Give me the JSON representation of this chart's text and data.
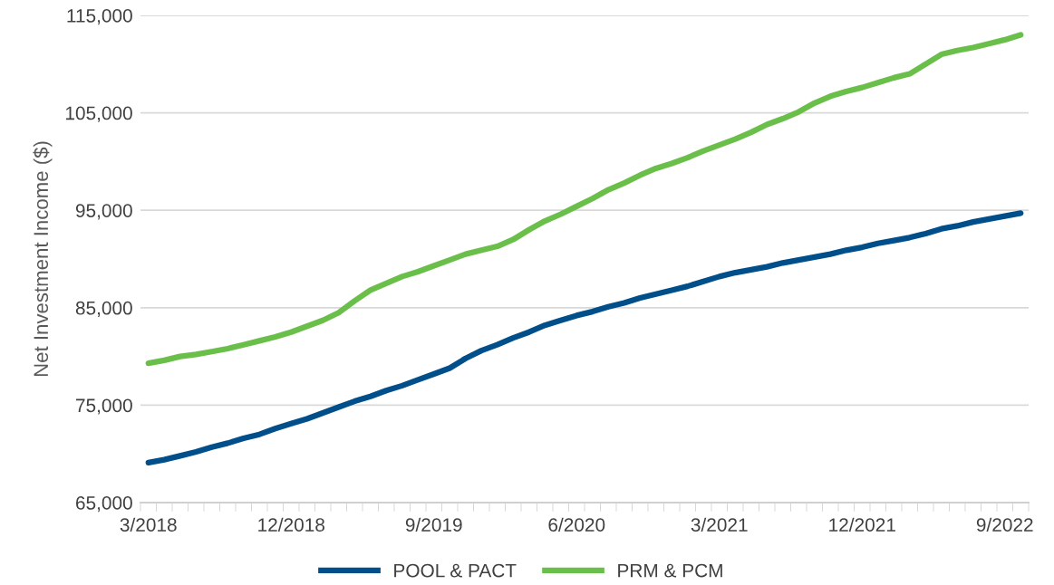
{
  "chart_data": {
    "type": "line",
    "ylabel": "Net Investment Income ($)",
    "categories": [
      "3/2018",
      null,
      null,
      null,
      null,
      null,
      null,
      null,
      null,
      "12/2018",
      null,
      null,
      null,
      null,
      null,
      null,
      null,
      null,
      "9/2019",
      null,
      null,
      null,
      null,
      null,
      null,
      null,
      null,
      "6/2020",
      null,
      null,
      null,
      null,
      null,
      null,
      null,
      null,
      "3/2021",
      null,
      null,
      null,
      null,
      null,
      null,
      null,
      null,
      "12/2021",
      null,
      null,
      null,
      null,
      null,
      null,
      null,
      null,
      "9/2022",
      null
    ],
    "series": [
      {
        "name": "POOL & PACT",
        "color": "#004f8a",
        "values": [
          69100,
          69400,
          69800,
          70200,
          70700,
          71100,
          71600,
          72000,
          72600,
          73100,
          73600,
          74200,
          74800,
          75400,
          75900,
          76500,
          77000,
          77600,
          78200,
          78800,
          79800,
          80600,
          81200,
          81900,
          82500,
          83200,
          83700,
          84200,
          84600,
          85100,
          85500,
          86000,
          86400,
          86800,
          87200,
          87700,
          88200,
          88600,
          88900,
          89200,
          89600,
          89900,
          90200,
          90500,
          90900,
          91200,
          91600,
          91900,
          92200,
          92600,
          93100,
          93400,
          93800,
          94100,
          94400,
          94700
        ]
      },
      {
        "name": "PRM & PCM",
        "color": "#6abf4b",
        "values": [
          79300,
          79600,
          80000,
          80200,
          80500,
          80800,
          81200,
          81600,
          82000,
          82500,
          83100,
          83700,
          84500,
          85700,
          86800,
          87500,
          88200,
          88700,
          89300,
          89900,
          90500,
          90900,
          91300,
          92000,
          93000,
          93900,
          94600,
          95400,
          96200,
          97100,
          97800,
          98600,
          99300,
          99800,
          100400,
          101100,
          101700,
          102300,
          103000,
          103800,
          104400,
          105100,
          106000,
          106700,
          107200,
          107600,
          108100,
          108600,
          109000,
          110000,
          111000,
          111400,
          111700,
          112100,
          112500,
          113000
        ]
      }
    ],
    "ylim": [
      65000,
      115000
    ],
    "yticks": [
      {
        "value": 65000,
        "label": "65,000"
      },
      {
        "value": 75000,
        "label": "75,000"
      },
      {
        "value": 85000,
        "label": "85,000"
      },
      {
        "value": 95000,
        "label": "95,000"
      },
      {
        "value": 105000,
        "label": "105,000"
      },
      {
        "value": 115000,
        "label": "115,000"
      }
    ],
    "grid": "y",
    "legend": "bottom",
    "marker": "none",
    "line_style": "solid"
  }
}
